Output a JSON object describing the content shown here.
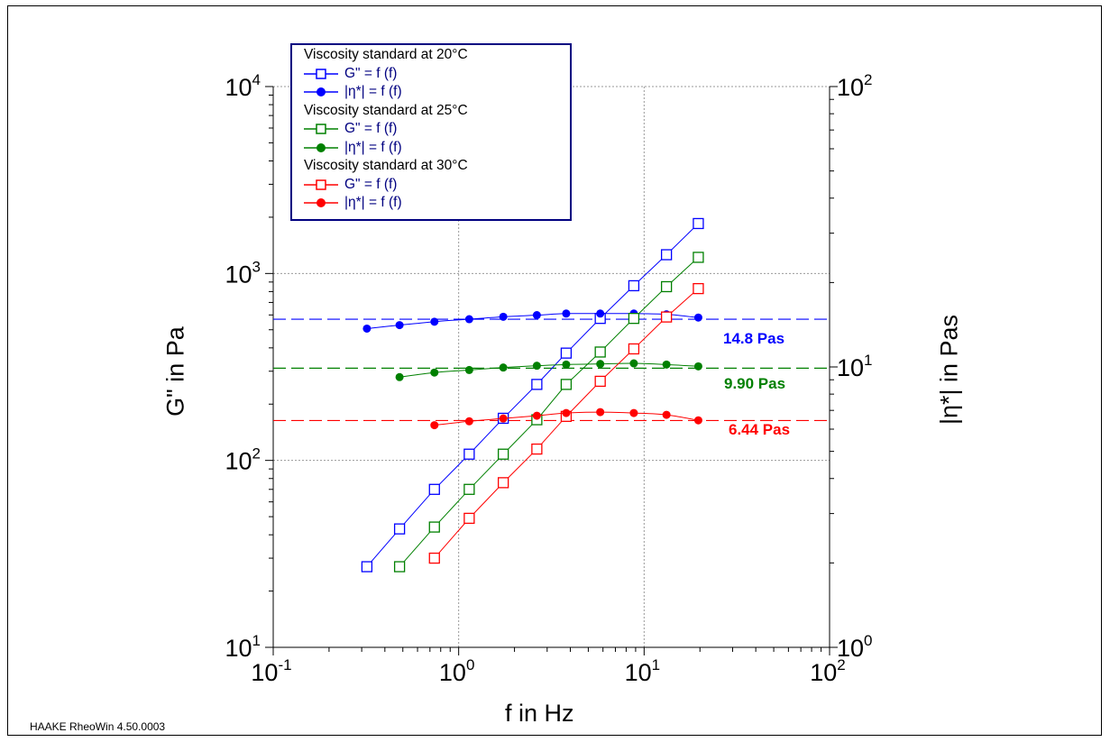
{
  "footer": "HAAKE RheoWin 4.50.0003",
  "chart_data": {
    "type": "line",
    "title": "",
    "xlabel": "f in Hz",
    "ylabel": "G\" in Pa",
    "y2label": "|η*| in Pas",
    "x_scale": "log",
    "y_scale": "log",
    "y2_scale": "log",
    "xlim": [
      0.1,
      100
    ],
    "ylim": [
      10,
      10000
    ],
    "y2lim": [
      1,
      100
    ],
    "x_ticks": [
      {
        "base": "10",
        "exp": "-1"
      },
      {
        "base": "10",
        "exp": "0"
      },
      {
        "base": "10",
        "exp": "1"
      },
      {
        "base": "10",
        "exp": "2"
      }
    ],
    "y_ticks": [
      {
        "base": "10",
        "exp": "1"
      },
      {
        "base": "10",
        "exp": "2"
      },
      {
        "base": "10",
        "exp": "3"
      },
      {
        "base": "10",
        "exp": "4"
      }
    ],
    "y2_ticks": [
      {
        "base": "10",
        "exp": "0"
      },
      {
        "base": "10",
        "exp": "1"
      },
      {
        "base": "10",
        "exp": "2"
      }
    ],
    "grid": true,
    "legend_position": "top-left",
    "legend": [
      {
        "group": "Viscosity standard at 20°C",
        "color": "#0000ff",
        "items": [
          {
            "label": "G\" = f (f)",
            "marker": "square-open"
          },
          {
            "label": "|η*| = f (f)",
            "marker": "circle-filled"
          }
        ]
      },
      {
        "group": "Viscosity standard at 25°C",
        "color": "#008000",
        "items": [
          {
            "label": "G\" = f (f)",
            "marker": "square-open"
          },
          {
            "label": "|η*| = f (f)",
            "marker": "circle-filled"
          }
        ]
      },
      {
        "group": "Viscosity standard at 30°C",
        "color": "#ff0000",
        "items": [
          {
            "label": "G\" = f (f)",
            "marker": "square-open"
          },
          {
            "label": "|η*| = f (f)",
            "marker": "circle-filled"
          }
        ]
      }
    ],
    "series": [
      {
        "name": "G\" = f (f)",
        "group": "Viscosity standard at 20°C",
        "axis": "left",
        "marker": "square-open",
        "color": "#0000ff",
        "x": [
          0.32,
          0.48,
          0.74,
          1.14,
          1.74,
          2.64,
          3.8,
          5.8,
          8.8,
          13.2,
          19.6
        ],
        "y": [
          27,
          43,
          70,
          108,
          168,
          255,
          375,
          575,
          860,
          1260,
          1850
        ]
      },
      {
        "name": "|η*| = f (f)",
        "group": "Viscosity standard at 20°C",
        "axis": "right",
        "marker": "circle-filled",
        "color": "#0000ff",
        "x": [
          0.32,
          0.48,
          0.74,
          1.14,
          1.74,
          2.64,
          3.8,
          5.8,
          8.8,
          13.2,
          19.6
        ],
        "y": [
          13.7,
          14.1,
          14.5,
          14.8,
          15.1,
          15.3,
          15.5,
          15.5,
          15.5,
          15.4,
          15.0
        ]
      },
      {
        "name": "G\" = f (f)",
        "group": "Viscosity standard at 25°C",
        "axis": "left",
        "marker": "square-open",
        "color": "#008000",
        "x": [
          0.48,
          0.74,
          1.14,
          1.74,
          2.64,
          3.8,
          5.8,
          8.8,
          13.2,
          19.6
        ],
        "y": [
          27,
          44,
          70,
          108,
          165,
          255,
          380,
          575,
          850,
          1220
        ]
      },
      {
        "name": "|η*| = f (f)",
        "group": "Viscosity standard at 25°C",
        "axis": "right",
        "marker": "circle-filled",
        "color": "#008000",
        "x": [
          0.48,
          0.74,
          1.14,
          1.74,
          2.64,
          3.8,
          5.8,
          8.8,
          13.2,
          19.6
        ],
        "y": [
          9.2,
          9.55,
          9.75,
          9.95,
          10.1,
          10.2,
          10.25,
          10.3,
          10.2,
          10.05
        ]
      },
      {
        "name": "G\" = f (f)",
        "group": "Viscosity standard at 30°C",
        "axis": "left",
        "marker": "square-open",
        "color": "#ff0000",
        "x": [
          0.74,
          1.14,
          1.74,
          2.64,
          3.8,
          5.8,
          8.8,
          13.2,
          19.6
        ],
        "y": [
          30,
          49,
          76,
          115,
          172,
          265,
          395,
          585,
          830
        ]
      },
      {
        "name": "|η*| = f (f)",
        "group": "Viscosity standard at 30°C",
        "axis": "right",
        "marker": "circle-filled",
        "color": "#ff0000",
        "x": [
          0.74,
          1.14,
          1.74,
          2.64,
          3.8,
          5.8,
          8.8,
          13.2,
          19.6
        ],
        "y": [
          6.2,
          6.4,
          6.55,
          6.7,
          6.85,
          6.9,
          6.85,
          6.75,
          6.45
        ]
      }
    ],
    "reference_lines": [
      {
        "axis": "right",
        "value": 14.8,
        "label": "14.8 Pas",
        "color": "#0000ff",
        "style": "dashed"
      },
      {
        "axis": "right",
        "value": 9.9,
        "label": "9.90 Pas",
        "color": "#008000",
        "style": "dashed"
      },
      {
        "axis": "right",
        "value": 6.44,
        "label": "6.44 Pas",
        "color": "#ff0000",
        "style": "dashed"
      }
    ]
  }
}
